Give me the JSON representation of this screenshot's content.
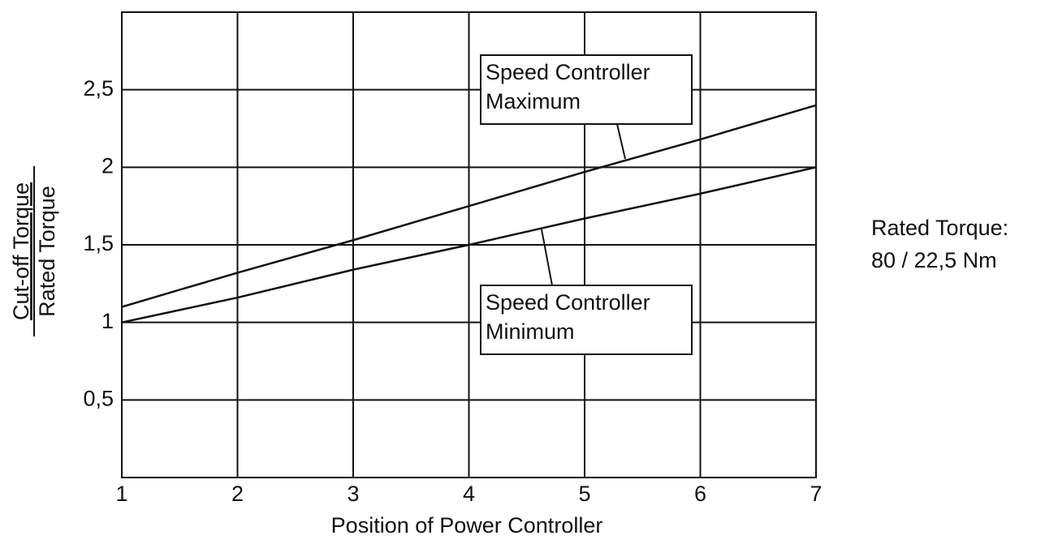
{
  "chart_data": {
    "type": "line",
    "x_label": "Position of Power Controller",
    "y_label": {
      "numerator": "Cut-off Torque",
      "denominator": "Rated Torque"
    },
    "x": [
      1,
      1.5,
      2,
      3,
      4,
      5,
      6,
      7
    ],
    "series": [
      {
        "color": "#111111",
        "values": [
          1.1,
          1.21,
          1.32,
          1.53,
          1.75,
          1.97,
          2.18,
          2.4
        ]
      },
      {
        "color": "#111111",
        "values": [
          1.0,
          1.08,
          1.16,
          1.34,
          1.5,
          1.67,
          1.83,
          2.0
        ]
      }
    ],
    "xlim": [
      1,
      7
    ],
    "xticks": [
      1,
      2,
      3,
      4,
      5,
      6,
      7
    ],
    "ylim": [
      0,
      3
    ],
    "yticks": [
      {
        "value": 0.5,
        "label": "0,5"
      },
      1,
      {
        "value": 1.5,
        "label": "1,5"
      },
      2,
      {
        "value": 2.5,
        "label": "2,5"
      }
    ],
    "grid": true,
    "annotations": [
      {
        "lines": [
          "Speed Controller",
          "Maximum"
        ],
        "series": 0
      },
      {
        "lines": [
          "Speed Controller",
          "Minimum"
        ],
        "series": 1
      }
    ],
    "side_note": [
      "Rated Torque:",
      "80 / 22,5 Nm"
    ]
  }
}
